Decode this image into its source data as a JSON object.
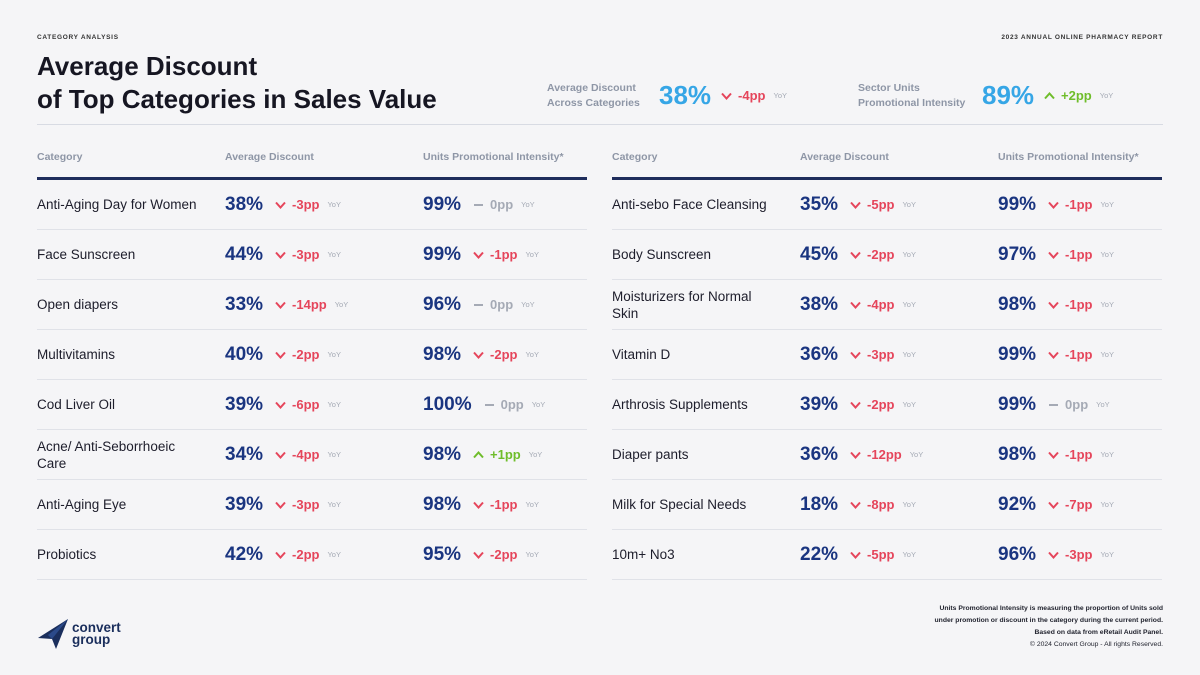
{
  "header": {
    "left_label": "CATEGORY ANALYSIS",
    "right_label": "2023 ANNUAL ONLINE PHARMACY REPORT",
    "title_line1": "Average Discount",
    "title_line2": "of Top Categories in Sales Value"
  },
  "kpis": [
    {
      "label_line1": "Average Discount",
      "label_line2": "Across Categories",
      "value": "38%",
      "change": "-4pp",
      "direction": "down",
      "yoy": "YoY"
    },
    {
      "label_line1": "Sector Units",
      "label_line2": "Promotional Intensity",
      "value": "89%",
      "change": "+2pp",
      "direction": "up",
      "yoy": "YoY"
    }
  ],
  "columns": {
    "category": "Category",
    "discount": "Average Discount",
    "upi": "Units Promotional Intensity*"
  },
  "left_rows": [
    {
      "category": "Anti-Aging Day for Women",
      "disc": "38%",
      "disc_chg": "-3pp",
      "disc_dir": "down",
      "upi": "99%",
      "upi_chg": "0pp",
      "upi_dir": "flat"
    },
    {
      "category": "Face Sunscreen",
      "disc": "44%",
      "disc_chg": "-3pp",
      "disc_dir": "down",
      "upi": "99%",
      "upi_chg": "-1pp",
      "upi_dir": "down"
    },
    {
      "category": "Open diapers",
      "disc": "33%",
      "disc_chg": "-14pp",
      "disc_dir": "down",
      "upi": "96%",
      "upi_chg": "0pp",
      "upi_dir": "flat"
    },
    {
      "category": "Multivitamins",
      "disc": "40%",
      "disc_chg": "-2pp",
      "disc_dir": "down",
      "upi": "98%",
      "upi_chg": "-2pp",
      "upi_dir": "down"
    },
    {
      "category": "Cod Liver Oil",
      "disc": "39%",
      "disc_chg": "-6pp",
      "disc_dir": "down",
      "upi": "100%",
      "upi_chg": "0pp",
      "upi_dir": "flat"
    },
    {
      "category": "Acne/ Anti-Seborrhoeic Care",
      "disc": "34%",
      "disc_chg": "-4pp",
      "disc_dir": "down",
      "upi": "98%",
      "upi_chg": "+1pp",
      "upi_dir": "up"
    },
    {
      "category": "Anti-Aging Eye",
      "disc": "39%",
      "disc_chg": "-3pp",
      "disc_dir": "down",
      "upi": "98%",
      "upi_chg": "-1pp",
      "upi_dir": "down"
    },
    {
      "category": "Probiotics",
      "disc": "42%",
      "disc_chg": "-2pp",
      "disc_dir": "down",
      "upi": "95%",
      "upi_chg": "-2pp",
      "upi_dir": "down"
    }
  ],
  "right_rows": [
    {
      "category": "Anti-sebo Face Cleansing",
      "disc": "35%",
      "disc_chg": "-5pp",
      "disc_dir": "down",
      "upi": "99%",
      "upi_chg": "-1pp",
      "upi_dir": "down"
    },
    {
      "category": "Body Sunscreen",
      "disc": "45%",
      "disc_chg": "-2pp",
      "disc_dir": "down",
      "upi": "97%",
      "upi_chg": "-1pp",
      "upi_dir": "down"
    },
    {
      "category": "Moisturizers for Normal Skin",
      "disc": "38%",
      "disc_chg": "-4pp",
      "disc_dir": "down",
      "upi": "98%",
      "upi_chg": "-1pp",
      "upi_dir": "down"
    },
    {
      "category": "Vitamin D",
      "disc": "36%",
      "disc_chg": "-3pp",
      "disc_dir": "down",
      "upi": "99%",
      "upi_chg": "-1pp",
      "upi_dir": "down"
    },
    {
      "category": "Arthrosis Supplements",
      "disc": "39%",
      "disc_chg": "-2pp",
      "disc_dir": "down",
      "upi": "99%",
      "upi_chg": "0pp",
      "upi_dir": "flat"
    },
    {
      "category": "Diaper pants",
      "disc": "36%",
      "disc_chg": "-12pp",
      "disc_dir": "down",
      "upi": "98%",
      "upi_chg": "-1pp",
      "upi_dir": "down"
    },
    {
      "category": "Milk for Special Needs",
      "disc": "18%",
      "disc_chg": "-8pp",
      "disc_dir": "down",
      "upi": "92%",
      "upi_chg": "-7pp",
      "upi_dir": "down"
    },
    {
      "category": "10m+ No3",
      "disc": "22%",
      "disc_chg": "-5pp",
      "disc_dir": "down",
      "upi": "96%",
      "upi_chg": "-3pp",
      "upi_dir": "down"
    }
  ],
  "yoy_label": "YoY",
  "footnote": {
    "line1": "Units Promotional Intensity is measuring the proportion of Units sold",
    "line2": "under promotion or discount in the category during the current period.",
    "line3": "Based on data from eRetail Audit Panel.",
    "copyright": "© 2024 Convert Group - All rights Reserved."
  },
  "logo": {
    "line1": "convert",
    "line2": "group",
    "icon": "paper-plane-icon"
  },
  "colors": {
    "value_blue": "#1a3580",
    "kpi_blue": "#36a6e6",
    "down_red": "#e5455b",
    "up_green": "#6fbd2b",
    "flat_gray": "#a5aab5",
    "header_rule": "#1f2d5c"
  }
}
